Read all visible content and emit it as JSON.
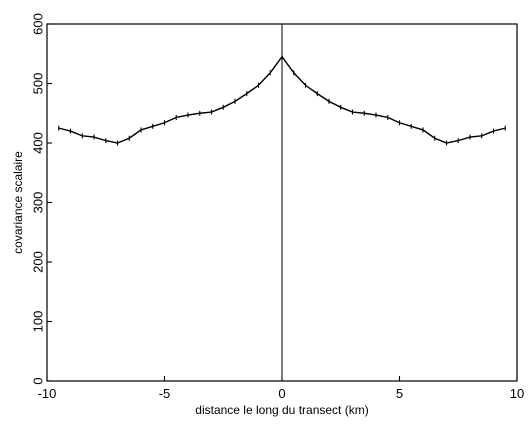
{
  "chart_data": {
    "type": "line",
    "xlabel": "distance le long du transect (km)",
    "ylabel": "covariance scalaire",
    "xlim": [
      -10,
      10
    ],
    "ylim": [
      0,
      600
    ],
    "x_ticks": [
      -10,
      -5,
      0,
      5,
      10
    ],
    "y_ticks": [
      0,
      100,
      200,
      300,
      400,
      500,
      600
    ],
    "grid": false,
    "vertical_reference_x": 0,
    "series": [
      {
        "x": [
          -9.5,
          -9,
          -8.5,
          -8,
          -7.5,
          -7,
          -6.5,
          -6,
          -5.5,
          -5,
          -4.5,
          -4,
          -3.5,
          -3,
          -2.5,
          -2,
          -1.5,
          -1,
          -0.5,
          0,
          0.5,
          1,
          1.5,
          2,
          2.5,
          3,
          3.5,
          4,
          4.5,
          5,
          5.5,
          6,
          6.5,
          7,
          7.5,
          8,
          8.5,
          9,
          9.5
        ],
        "values": [
          425,
          420,
          412,
          410,
          404,
          400,
          408,
          422,
          428,
          434,
          443,
          447,
          450,
          452,
          460,
          470,
          483,
          497,
          518,
          545,
          518,
          497,
          483,
          470,
          460,
          452,
          450,
          447,
          443,
          434,
          428,
          422,
          408,
          400,
          404,
          410,
          412,
          420,
          425
        ]
      }
    ]
  }
}
